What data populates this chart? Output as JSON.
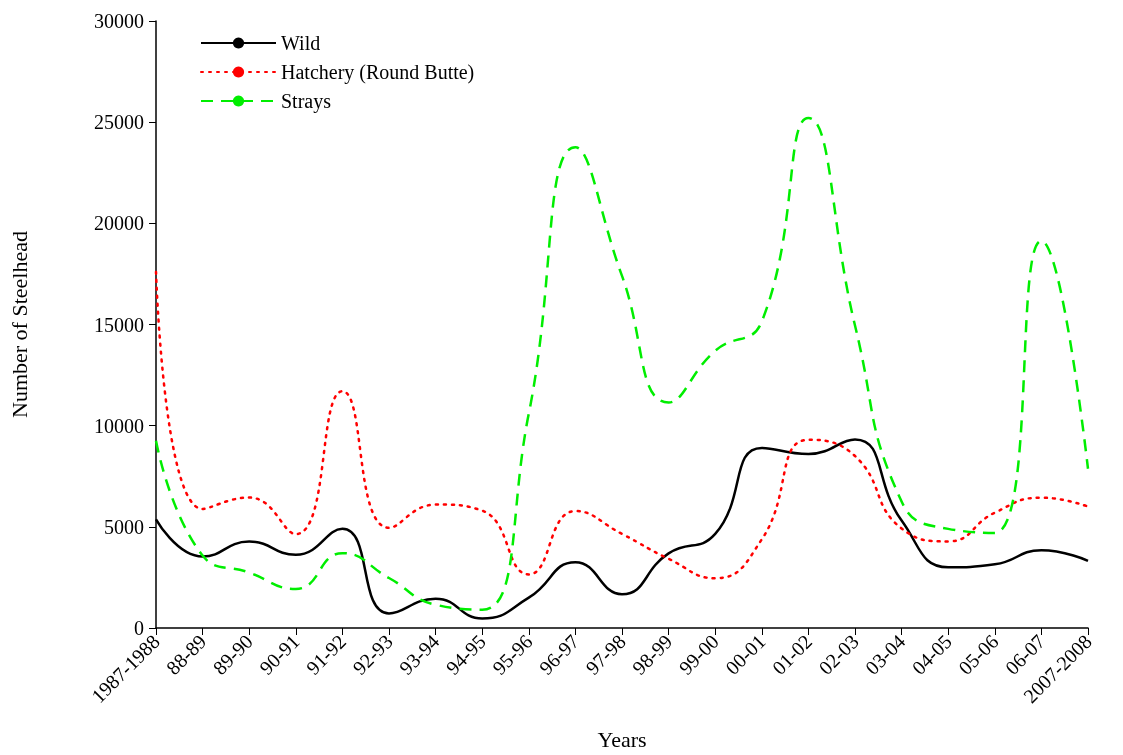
{
  "chart_data": {
    "type": "line",
    "xlabel": "Years",
    "ylabel": "Number of Steelhead",
    "categories": [
      "1987-1988",
      "88-89",
      "89-90",
      "90-91",
      "91-92",
      "92-93",
      "93-94",
      "94-95",
      "95-96",
      "96-97",
      "97-98",
      "98-99",
      "99-00",
      "00-01",
      "01-02",
      "02-03",
      "03-04",
      "04-05",
      "05-06",
      "06-07",
      "2007-2008"
    ],
    "series": [
      {
        "name": "Wild",
        "color": "#000000",
        "line_style": "solid",
        "values": [
          5370,
          3530,
          4270,
          3620,
          4900,
          720,
          1450,
          470,
          1500,
          3250,
          1670,
          3690,
          4650,
          8900,
          8600,
          9320,
          5310,
          3000,
          3150,
          3840,
          3320
        ]
      },
      {
        "name": "Hatchery (Round Butte)",
        "color": "#ff0000",
        "line_style": "dotted",
        "values": [
          17600,
          5880,
          6450,
          4640,
          11700,
          4950,
          6100,
          5800,
          2650,
          5780,
          4650,
          3420,
          2460,
          4380,
          9300,
          8500,
          4920,
          4280,
          5700,
          6440,
          6000
        ]
      },
      {
        "name": "Strays",
        "color": "#00ee00",
        "line_style": "dashed",
        "values": [
          9250,
          3580,
          2740,
          1930,
          3700,
          2470,
          1150,
          900,
          10600,
          23760,
          17400,
          11150,
          13700,
          15150,
          25200,
          14950,
          6250,
          4900,
          4700,
          19130,
          7870
        ]
      }
    ],
    "ylim": [
      0,
      30000
    ],
    "yticks": [
      0,
      5000,
      10000,
      15000,
      20000,
      25000,
      30000
    ],
    "grid": false,
    "legend": "top left",
    "marker": "none"
  }
}
